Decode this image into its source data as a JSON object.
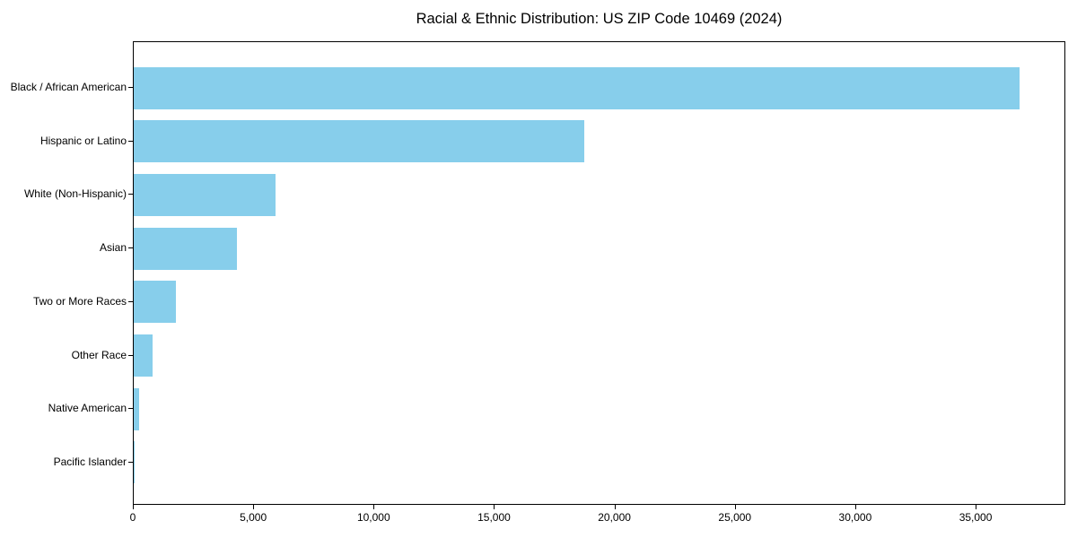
{
  "chart_data": {
    "type": "bar",
    "orientation": "horizontal",
    "title": "Racial & Ethnic Distribution: US ZIP Code 10469 (2024)",
    "categories": [
      "Black / African American",
      "Hispanic or Latino",
      "White (Non-Hispanic)",
      "Asian",
      "Two or More Races",
      "Other Race",
      "Native American",
      "Pacific Islander"
    ],
    "values": [
      36800,
      18700,
      5900,
      4300,
      1750,
      780,
      240,
      30
    ],
    "bar_color": "#87CEEB",
    "xlim": [
      0,
      38650
    ],
    "x_ticks": [
      0,
      5000,
      10000,
      15000,
      20000,
      25000,
      30000,
      35000
    ],
    "x_tick_labels": [
      "0",
      "5,000",
      "10,000",
      "15,000",
      "20,000",
      "25,000",
      "30,000",
      "35,000"
    ],
    "xlabel": "",
    "ylabel": "",
    "grid": false,
    "legend": "none"
  }
}
